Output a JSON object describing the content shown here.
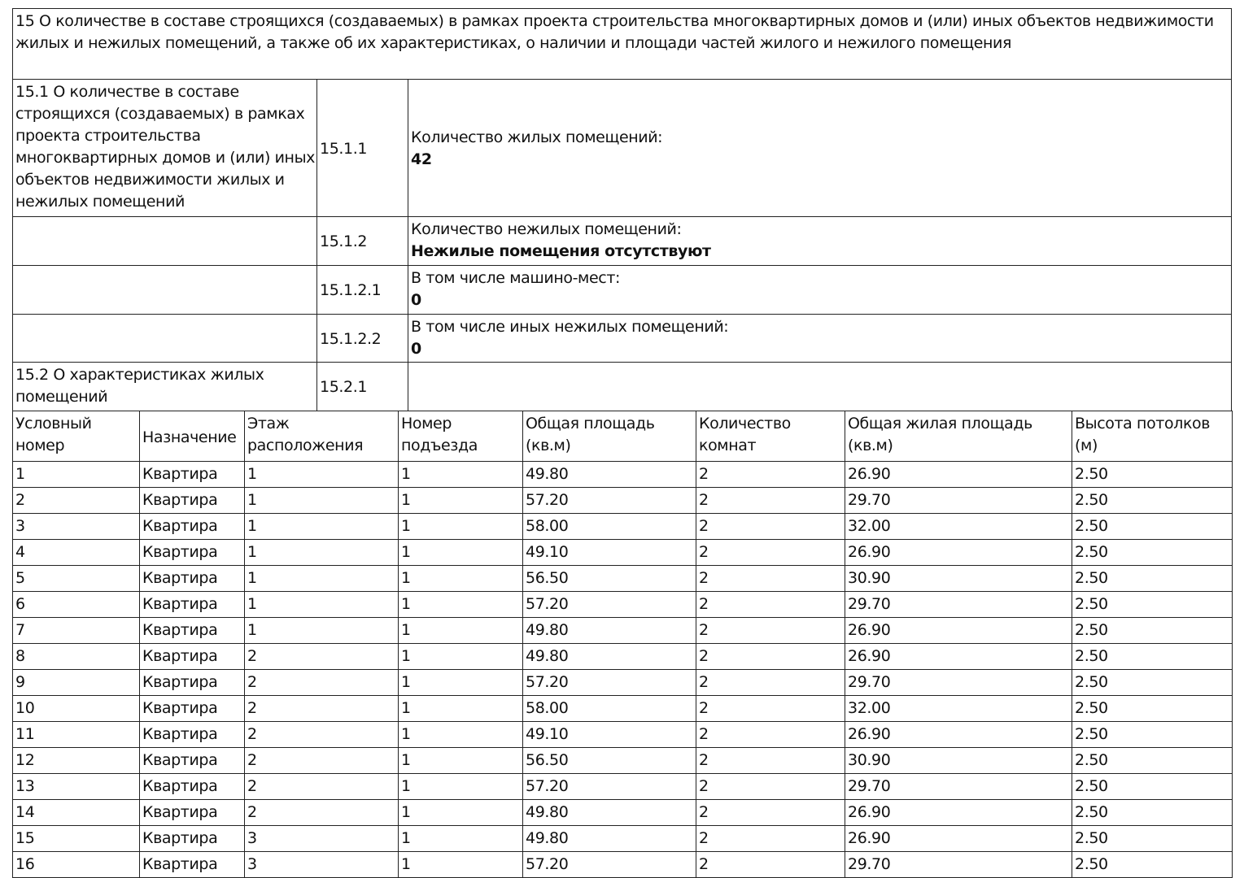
{
  "section_title": "15 О количестве в составе строящихся (создаваемых) в рамках проекта строительства многоквартирных домов и (или) иных объектов недвижимости жилых и нежилых помещений, а также об их характеристиках, о наличии и площади частей жилого и нежилого помещения",
  "subsection_15_1": {
    "title": "15.1 О количестве в составе строящихся (создаваемых) в рамках проекта строительства многоквартирных домов и (или) иных объектов недвижимости жилых и нежилых помещений",
    "items": [
      {
        "code": "15.1.1",
        "label": "Количество жилых помещений:",
        "value": "42"
      },
      {
        "code": "15.1.2",
        "label": "Количество нежилых помещений:",
        "value": "Нежилые помещения отсутствуют"
      },
      {
        "code": "15.1.2.1",
        "label": "В том числе машино-мест:",
        "value": "0"
      },
      {
        "code": "15.1.2.2",
        "label": "В том числе иных нежилых помещений:",
        "value": "0"
      }
    ]
  },
  "subsection_15_2": {
    "title": "15.2 О характеристиках жилых помещений",
    "code": "15.2.1"
  },
  "apartments_table": {
    "headers": [
      "Условный номер",
      "Назначение",
      "Этаж расположения",
      "Номер подъезда",
      "Общая площадь (кв.м)",
      "Количество комнат",
      "Общая жилая площадь (кв.м)",
      "Высота потолков (м)"
    ],
    "rows": [
      [
        "1",
        "Квартира",
        "1",
        "1",
        "49.80",
        "2",
        "26.90",
        "2.50"
      ],
      [
        "2",
        "Квартира",
        "1",
        "1",
        "57.20",
        "2",
        "29.70",
        "2.50"
      ],
      [
        "3",
        "Квартира",
        "1",
        "1",
        "58.00",
        "2",
        "32.00",
        "2.50"
      ],
      [
        "4",
        "Квартира",
        "1",
        "1",
        "49.10",
        "2",
        "26.90",
        "2.50"
      ],
      [
        "5",
        "Квартира",
        "1",
        "1",
        "56.50",
        "2",
        "30.90",
        "2.50"
      ],
      [
        "6",
        "Квартира",
        "1",
        "1",
        "57.20",
        "2",
        "29.70",
        "2.50"
      ],
      [
        "7",
        "Квартира",
        "1",
        "1",
        "49.80",
        "2",
        "26.90",
        "2.50"
      ],
      [
        "8",
        "Квартира",
        "2",
        "1",
        "49.80",
        "2",
        "26.90",
        "2.50"
      ],
      [
        "9",
        "Квартира",
        "2",
        "1",
        "57.20",
        "2",
        "29.70",
        "2.50"
      ],
      [
        "10",
        "Квартира",
        "2",
        "1",
        "58.00",
        "2",
        "32.00",
        "2.50"
      ],
      [
        "11",
        "Квартира",
        "2",
        "1",
        "49.10",
        "2",
        "26.90",
        "2.50"
      ],
      [
        "12",
        "Квартира",
        "2",
        "1",
        "56.50",
        "2",
        "30.90",
        "2.50"
      ],
      [
        "13",
        "Квартира",
        "2",
        "1",
        "57.20",
        "2",
        "29.70",
        "2.50"
      ],
      [
        "14",
        "Квартира",
        "2",
        "1",
        "49.80",
        "2",
        "26.90",
        "2.50"
      ],
      [
        "15",
        "Квартира",
        "3",
        "1",
        "49.80",
        "2",
        "26.90",
        "2.50"
      ],
      [
        "16",
        "Квартира",
        "3",
        "1",
        "57.20",
        "2",
        "29.70",
        "2.50"
      ]
    ]
  }
}
